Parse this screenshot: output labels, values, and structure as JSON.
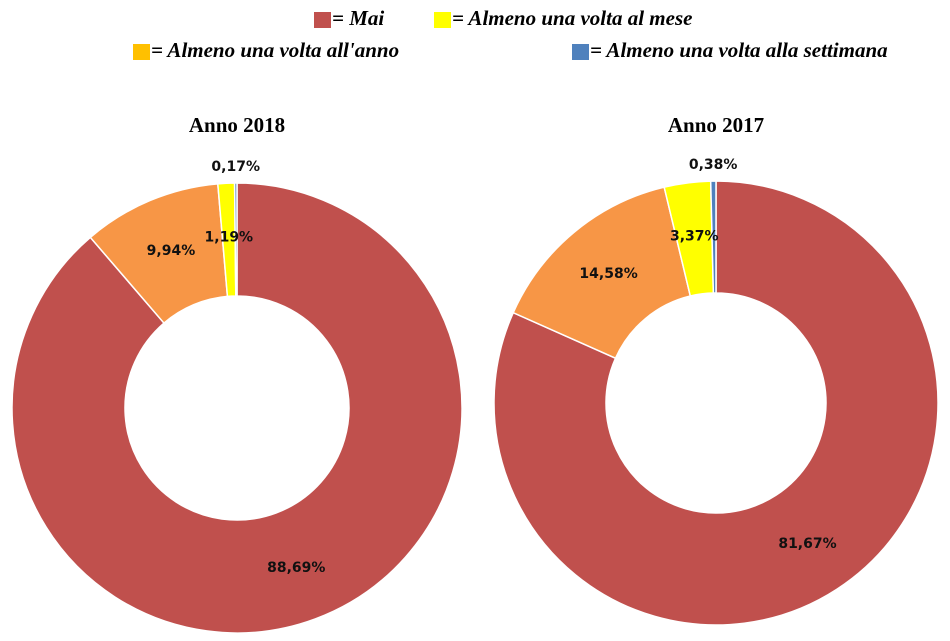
{
  "legend": [
    {
      "name": "= Mai",
      "color": "#c0504d"
    },
    {
      "name": "= Almeno una volta al mese",
      "color": "#ffff00"
    },
    {
      "name": "= Almeno una volta all'anno",
      "color": "#ffc000"
    },
    {
      "name": "= Almeno una volta alla settimana",
      "color": "#4f81bd"
    }
  ],
  "chart_data": [
    {
      "type": "donut",
      "title": "Anno 2018",
      "values": [
        88.69,
        9.94,
        1.19,
        0.17
      ],
      "value_labels": [
        "88,69%",
        "9,94%",
        "1,19%",
        "0,17%"
      ],
      "colors": [
        "#c0504d",
        "#f79646",
        "#ffff00",
        "#4f81bd"
      ]
    },
    {
      "type": "donut",
      "title": "Anno 2017",
      "values": [
        81.67,
        14.58,
        3.37,
        0.38
      ],
      "value_labels": [
        "81,67%",
        "14,58%",
        "3,37%",
        "0,38%"
      ],
      "colors": [
        "#c0504d",
        "#f79646",
        "#ffff00",
        "#4f81bd"
      ]
    }
  ]
}
